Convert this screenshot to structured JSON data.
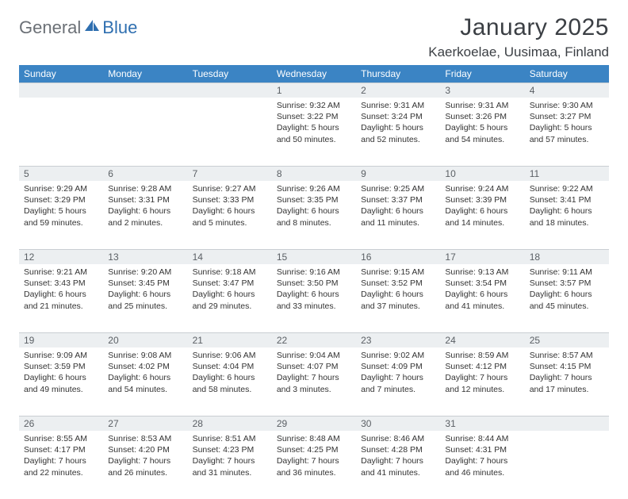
{
  "brand": {
    "word1": "General",
    "word2": "Blue"
  },
  "title": "January 2025",
  "location": "Kaerkoelae, Uusimaa, Finland",
  "colors": {
    "header_bg": "#3b84c4",
    "header_text": "#ffffff",
    "daynum_bg": "#eceff1",
    "rule": "#c9ced2",
    "brand_gray": "#6b7076",
    "brand_blue": "#2f6fb0"
  },
  "weekdays": [
    "Sunday",
    "Monday",
    "Tuesday",
    "Wednesday",
    "Thursday",
    "Friday",
    "Saturday"
  ],
  "weeks": [
    [
      null,
      null,
      null,
      {
        "n": "1",
        "sr": "9:32 AM",
        "ss": "3:22 PM",
        "dl": "5 hours and 50 minutes."
      },
      {
        "n": "2",
        "sr": "9:31 AM",
        "ss": "3:24 PM",
        "dl": "5 hours and 52 minutes."
      },
      {
        "n": "3",
        "sr": "9:31 AM",
        "ss": "3:26 PM",
        "dl": "5 hours and 54 minutes."
      },
      {
        "n": "4",
        "sr": "9:30 AM",
        "ss": "3:27 PM",
        "dl": "5 hours and 57 minutes."
      }
    ],
    [
      {
        "n": "5",
        "sr": "9:29 AM",
        "ss": "3:29 PM",
        "dl": "5 hours and 59 minutes."
      },
      {
        "n": "6",
        "sr": "9:28 AM",
        "ss": "3:31 PM",
        "dl": "6 hours and 2 minutes."
      },
      {
        "n": "7",
        "sr": "9:27 AM",
        "ss": "3:33 PM",
        "dl": "6 hours and 5 minutes."
      },
      {
        "n": "8",
        "sr": "9:26 AM",
        "ss": "3:35 PM",
        "dl": "6 hours and 8 minutes."
      },
      {
        "n": "9",
        "sr": "9:25 AM",
        "ss": "3:37 PM",
        "dl": "6 hours and 11 minutes."
      },
      {
        "n": "10",
        "sr": "9:24 AM",
        "ss": "3:39 PM",
        "dl": "6 hours and 14 minutes."
      },
      {
        "n": "11",
        "sr": "9:22 AM",
        "ss": "3:41 PM",
        "dl": "6 hours and 18 minutes."
      }
    ],
    [
      {
        "n": "12",
        "sr": "9:21 AM",
        "ss": "3:43 PM",
        "dl": "6 hours and 21 minutes."
      },
      {
        "n": "13",
        "sr": "9:20 AM",
        "ss": "3:45 PM",
        "dl": "6 hours and 25 minutes."
      },
      {
        "n": "14",
        "sr": "9:18 AM",
        "ss": "3:47 PM",
        "dl": "6 hours and 29 minutes."
      },
      {
        "n": "15",
        "sr": "9:16 AM",
        "ss": "3:50 PM",
        "dl": "6 hours and 33 minutes."
      },
      {
        "n": "16",
        "sr": "9:15 AM",
        "ss": "3:52 PM",
        "dl": "6 hours and 37 minutes."
      },
      {
        "n": "17",
        "sr": "9:13 AM",
        "ss": "3:54 PM",
        "dl": "6 hours and 41 minutes."
      },
      {
        "n": "18",
        "sr": "9:11 AM",
        "ss": "3:57 PM",
        "dl": "6 hours and 45 minutes."
      }
    ],
    [
      {
        "n": "19",
        "sr": "9:09 AM",
        "ss": "3:59 PM",
        "dl": "6 hours and 49 minutes."
      },
      {
        "n": "20",
        "sr": "9:08 AM",
        "ss": "4:02 PM",
        "dl": "6 hours and 54 minutes."
      },
      {
        "n": "21",
        "sr": "9:06 AM",
        "ss": "4:04 PM",
        "dl": "6 hours and 58 minutes."
      },
      {
        "n": "22",
        "sr": "9:04 AM",
        "ss": "4:07 PM",
        "dl": "7 hours and 3 minutes."
      },
      {
        "n": "23",
        "sr": "9:02 AM",
        "ss": "4:09 PM",
        "dl": "7 hours and 7 minutes."
      },
      {
        "n": "24",
        "sr": "8:59 AM",
        "ss": "4:12 PM",
        "dl": "7 hours and 12 minutes."
      },
      {
        "n": "25",
        "sr": "8:57 AM",
        "ss": "4:15 PM",
        "dl": "7 hours and 17 minutes."
      }
    ],
    [
      {
        "n": "26",
        "sr": "8:55 AM",
        "ss": "4:17 PM",
        "dl": "7 hours and 22 minutes."
      },
      {
        "n": "27",
        "sr": "8:53 AM",
        "ss": "4:20 PM",
        "dl": "7 hours and 26 minutes."
      },
      {
        "n": "28",
        "sr": "8:51 AM",
        "ss": "4:23 PM",
        "dl": "7 hours and 31 minutes."
      },
      {
        "n": "29",
        "sr": "8:48 AM",
        "ss": "4:25 PM",
        "dl": "7 hours and 36 minutes."
      },
      {
        "n": "30",
        "sr": "8:46 AM",
        "ss": "4:28 PM",
        "dl": "7 hours and 41 minutes."
      },
      {
        "n": "31",
        "sr": "8:44 AM",
        "ss": "4:31 PM",
        "dl": "7 hours and 46 minutes."
      },
      null
    ]
  ],
  "labels": {
    "sunrise": "Sunrise: ",
    "sunset": "Sunset: ",
    "daylight": "Daylight: "
  }
}
